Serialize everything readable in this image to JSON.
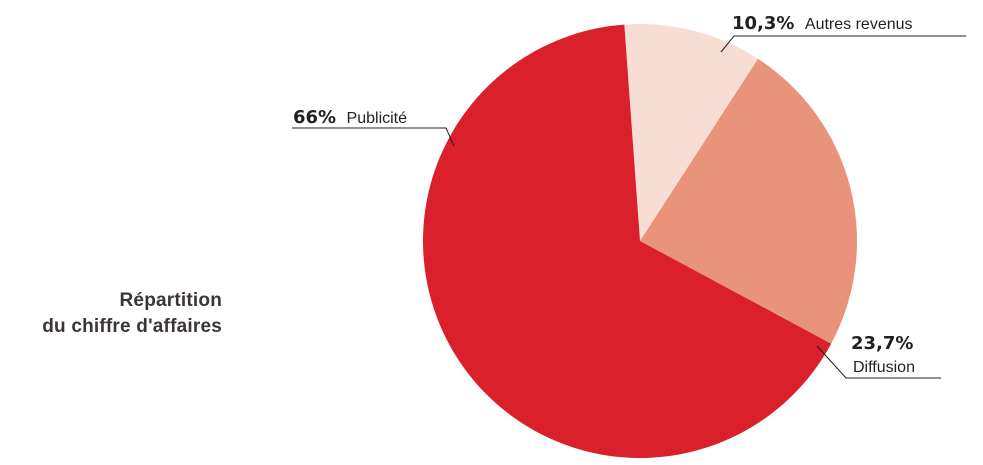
{
  "title_lines": [
    "Répartition",
    "du chiffre d'affaires"
  ],
  "colors": {
    "publicite": "#d9202b",
    "diffusion": "#e9937a",
    "autres": "#f8ddd4",
    "leader": "#231f20"
  },
  "chart_data": {
    "type": "pie",
    "title": "Répartition du chiffre d'affaires",
    "start_angle_deg": -4.15,
    "direction": "clockwise",
    "slices": [
      {
        "label": "Autres revenus",
        "value_text": "10,3%",
        "value": 10.3,
        "color": "#f8ddd4"
      },
      {
        "label": "Diffusion",
        "value_text": "23,7%",
        "value": 23.7,
        "color": "#e9937a"
      },
      {
        "label": "Publicité",
        "value_text": "66%",
        "value": 66.0,
        "color": "#d9202b"
      }
    ]
  }
}
